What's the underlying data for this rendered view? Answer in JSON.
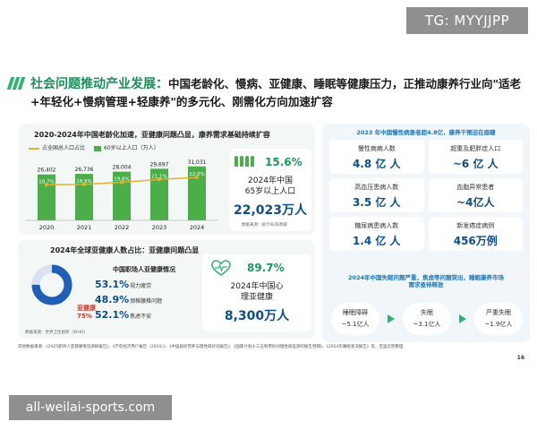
{
  "watermarks": {
    "tg": "TG: MYYJJPP",
    "site": "all-weilai-sports.com"
  },
  "headline": {
    "lead": "社会问题推动产业发展：",
    "body": "中国老龄化、慢病、亚健康、睡眠等健康压力，正推动康养行业向\"适老+年轻化+慢病管理+轻康养\"的多元化、刚需化方向加速扩容"
  },
  "aging_card": {
    "title": "2020-2024年中国老龄化加速，亚健康问题凸显，康养需求基础持续扩容",
    "legend_line": "占全国总人口占比",
    "legend_bar": "60岁以上人口（万人）",
    "source": "数据来源：统计局/民政部",
    "stat_pct": "15.6%",
    "stat_label_1": "2024年中国",
    "stat_label_2": "65岁以上人口",
    "stat_big": "22,023万人",
    "chart_data": {
      "type": "bar",
      "categories": [
        "2020",
        "2021",
        "2022",
        "2023",
        "2024"
      ],
      "series": [
        {
          "name": "60岁以上人口（万人）",
          "values": [
            26402,
            26736,
            28004,
            29697,
            31031
          ],
          "labels": [
            "26,402",
            "26,736",
            "28,004",
            "29,697",
            "31,031"
          ]
        },
        {
          "name": "占全国总人口占比",
          "values": [
            18.7,
            18.9,
            19.8,
            21.1,
            22.0
          ],
          "labels": [
            "18.7%",
            "18.9%",
            "19.8%",
            "21.1%",
            "22.0%"
          ]
        }
      ],
      "ylim": [
        0,
        34000
      ]
    }
  },
  "subhealth_card": {
    "title": "2024年全球亚健康人数占比：亚健康问题凸显",
    "donut_value": 75,
    "donut_label": "亚健康",
    "donut_pct": "75%",
    "source": "数据来源：世界卫生组织（WHO）",
    "mid_title": "中国职场人亚健康情况",
    "rows": [
      {
        "pct": "53.1%",
        "label": "视力疲劳"
      },
      {
        "pct": "48.9%",
        "label": "颈椎腰椎问题"
      },
      {
        "pct": "52.1%",
        "label": "焦虑不安"
      }
    ],
    "stat_pct": "89.7%",
    "stat_label_1": "2024年中国心",
    "stat_label_2": "理亚健康",
    "stat_big": "8,300万人"
  },
  "right_card": {
    "head_top": "2023 年中国慢性病患者超4.8亿，康养干预迫在眉睫",
    "cells": [
      {
        "label": "慢性病病人数",
        "value": "4.8 亿 人"
      },
      {
        "label": "超重及肥胖症人口",
        "value": "~6 亿 人"
      },
      {
        "label": "高血压患病人数",
        "value": "3.5 亿 人"
      },
      {
        "label": "血脂异常患者",
        "value": "~4亿人"
      },
      {
        "label": "糖尿病患病人数",
        "value": "1.4 亿 人"
      },
      {
        "label": "新发癌症病例",
        "value": "456万例"
      }
    ],
    "head_bottom_1": "2024年中国失眠问题严重，焦虑等问题突出，睡眠康养市场",
    "head_bottom_2": "需求亟待释放",
    "sleep": [
      {
        "label": "睡眠障碍",
        "value": "~5.1亿人"
      },
      {
        "label": "失眠",
        "value": "~3.1亿人"
      },
      {
        "label": "严重失眠",
        "value": "~1.9亿人"
      }
    ]
  },
  "footer": {
    "sources": "其他数据来源：《2025职场人亚健康情况调研报告》、《疗愈经济用户报告（2024）》、《中国居民营养与慢性病状况报告》、《国家计划十三五利用民间慢性病监测的报告预期》、《2024年睡眠状况报告》等，百里云智整理",
    "page": "16"
  },
  "colors": {
    "green": "#4cae49",
    "line": "#e3b12d",
    "navy": "#0e4e8a",
    "accent": "#1a9a5a"
  }
}
